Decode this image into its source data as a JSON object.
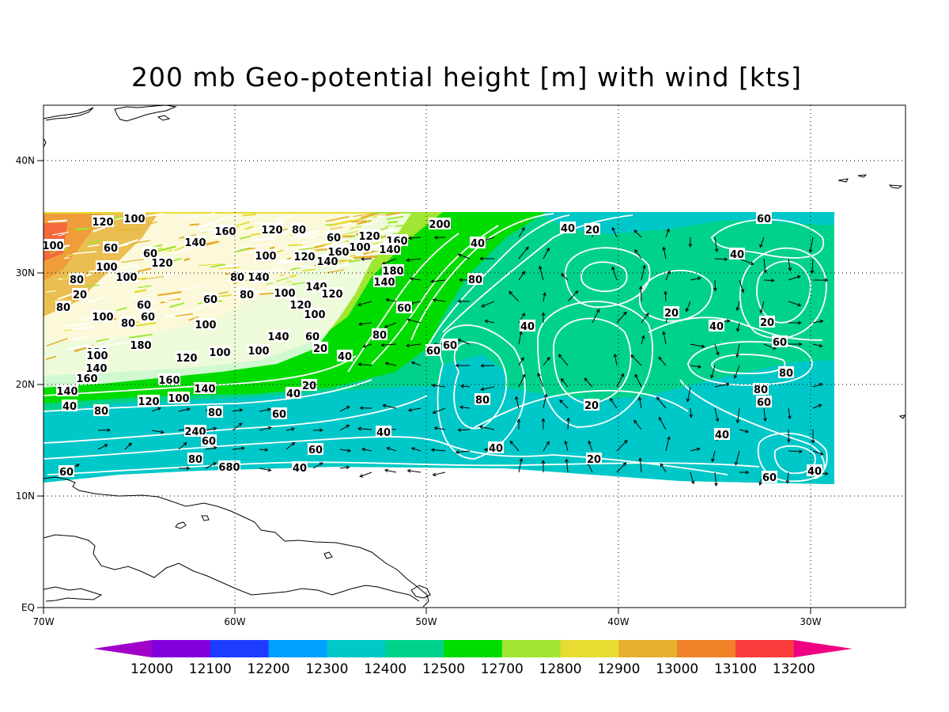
{
  "title": "200 mb Geo-potential height [m] with wind [kts]",
  "axes": {
    "lon_ticks": [
      "70W",
      "60W",
      "50W",
      "40W",
      "30W"
    ],
    "lat_ticks": [
      "EQ",
      "10N",
      "20N",
      "30N",
      "40N"
    ]
  },
  "colorbar": {
    "labels": [
      "12000",
      "12100",
      "12200",
      "12300",
      "12400",
      "12500",
      "12700",
      "12800",
      "12900",
      "13000",
      "13100",
      "13200"
    ],
    "colors": [
      "#a000c8",
      "#8200dc",
      "#1e3cff",
      "#00a0ff",
      "#00c8c8",
      "#00d28c",
      "#00dc00",
      "#a0e632",
      "#e6dc32",
      "#e6af2d",
      "#f08228",
      "#fa3c3c",
      "#f00082"
    ]
  },
  "contour_labels": [
    "200",
    "160",
    "140",
    "120",
    "100",
    "80",
    "60",
    "40",
    "20"
  ]
}
